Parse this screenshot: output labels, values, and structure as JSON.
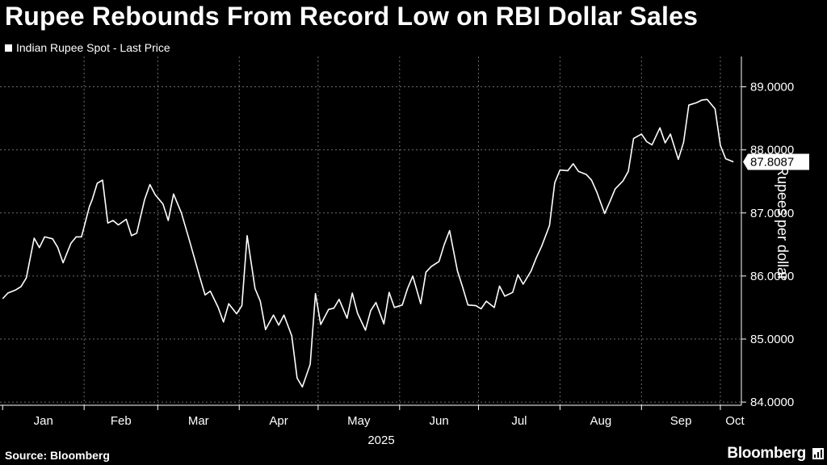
{
  "title": "Rupee Rebounds From Record Low on RBI Dollar Sales",
  "source": "Source: Bloomberg",
  "brand": "Bloomberg",
  "colors": {
    "background": "#000000",
    "line": "#ffffff",
    "grid": "#6b6b6b"
  },
  "chart_data": {
    "type": "line",
    "title": "Rupee Rebounds From Record Low on RBI Dollar Sales",
    "ylabel": "Rupees per dollar",
    "xlabel": "2025",
    "year_label": "2025",
    "legend": "Indian Rupee Spot - Last Price",
    "legend_position": "top-left",
    "y_axis_side": "right",
    "ylim": [
      83.95,
      89.25
    ],
    "yticks": [
      84.0,
      85.0,
      86.0,
      87.0,
      88.0,
      89.0
    ],
    "ytick_labels": [
      "84.0000",
      "85.0000",
      "86.0000",
      "87.0000",
      "88.0000",
      "89.0000"
    ],
    "x_months": [
      "Jan",
      "Feb",
      "Mar",
      "Apr",
      "May",
      "Jun",
      "Jul",
      "Aug",
      "Sep",
      "Oct"
    ],
    "last_value_label": "87.8087",
    "grid": true,
    "series": [
      {
        "name": "Indian Rupee Spot - Last Price",
        "x": [
          "2025-01-01",
          "2025-01-03",
          "2025-01-06",
          "2025-01-08",
          "2025-01-10",
          "2025-01-13",
          "2025-01-15",
          "2025-01-17",
          "2025-01-20",
          "2025-01-22",
          "2025-01-24",
          "2025-01-27",
          "2025-01-29",
          "2025-01-31",
          "2025-02-03",
          "2025-02-04",
          "2025-02-06",
          "2025-02-08",
          "2025-02-10",
          "2025-02-12",
          "2025-02-14",
          "2025-02-17",
          "2025-02-19",
          "2025-02-21",
          "2025-02-24",
          "2025-02-26",
          "2025-02-28",
          "2025-03-03",
          "2025-03-05",
          "2025-03-07",
          "2025-03-10",
          "2025-03-13",
          "2025-03-17",
          "2025-03-19",
          "2025-03-21",
          "2025-03-24",
          "2025-03-26",
          "2025-03-28",
          "2025-03-31",
          "2025-04-02",
          "2025-04-04",
          "2025-04-07",
          "2025-04-09",
          "2025-04-11",
          "2025-04-14",
          "2025-04-16",
          "2025-04-18",
          "2025-04-21",
          "2025-04-23",
          "2025-04-25",
          "2025-04-28",
          "2025-04-30",
          "2025-05-02",
          "2025-05-05",
          "2025-05-07",
          "2025-05-09",
          "2025-05-12",
          "2025-05-14",
          "2025-05-16",
          "2025-05-19",
          "2025-05-21",
          "2025-05-23",
          "2025-05-26",
          "2025-05-28",
          "2025-05-30",
          "2025-06-02",
          "2025-06-04",
          "2025-06-06",
          "2025-06-09",
          "2025-06-11",
          "2025-06-13",
          "2025-06-16",
          "2025-06-18",
          "2025-06-20",
          "2025-06-23",
          "2025-06-25",
          "2025-06-27",
          "2025-06-30",
          "2025-07-02",
          "2025-07-04",
          "2025-07-07",
          "2025-07-09",
          "2025-07-11",
          "2025-07-14",
          "2025-07-16",
          "2025-07-18",
          "2025-07-21",
          "2025-07-23",
          "2025-07-25",
          "2025-07-28",
          "2025-07-30",
          "2025-08-01",
          "2025-08-04",
          "2025-08-06",
          "2025-08-08",
          "2025-08-11",
          "2025-08-13",
          "2025-08-15",
          "2025-08-18",
          "2025-08-20",
          "2025-08-22",
          "2025-08-25",
          "2025-08-27",
          "2025-08-29",
          "2025-09-01",
          "2025-09-03",
          "2025-09-05",
          "2025-09-08",
          "2025-09-10",
          "2025-09-12",
          "2025-09-15",
          "2025-09-17",
          "2025-09-19",
          "2025-09-22",
          "2025-09-24",
          "2025-09-26",
          "2025-09-29",
          "2025-10-01",
          "2025-10-03",
          "2025-10-06"
        ],
        "values": [
          85.64,
          85.73,
          85.78,
          85.83,
          85.97,
          86.6,
          86.45,
          86.62,
          86.59,
          86.45,
          86.21,
          86.52,
          86.62,
          86.62,
          87.1,
          87.2,
          87.47,
          87.52,
          86.84,
          86.88,
          86.81,
          86.9,
          86.64,
          86.68,
          87.21,
          87.45,
          87.29,
          87.14,
          86.88,
          87.3,
          87.0,
          86.57,
          85.98,
          85.7,
          85.76,
          85.5,
          85.27,
          85.56,
          85.4,
          85.53,
          86.64,
          85.8,
          85.6,
          85.15,
          85.38,
          85.22,
          85.38,
          85.05,
          84.38,
          84.24,
          84.6,
          85.72,
          85.23,
          85.47,
          85.49,
          85.63,
          85.33,
          85.73,
          85.41,
          85.14,
          85.45,
          85.58,
          85.24,
          85.74,
          85.5,
          85.54,
          85.8,
          86.0,
          85.56,
          86.06,
          86.15,
          86.23,
          86.5,
          86.72,
          86.08,
          85.82,
          85.54,
          85.53,
          85.48,
          85.6,
          85.5,
          85.84,
          85.68,
          85.74,
          86.02,
          85.87,
          86.08,
          86.29,
          86.47,
          86.8,
          87.48,
          87.68,
          87.67,
          87.78,
          87.66,
          87.61,
          87.52,
          87.33,
          86.99,
          87.18,
          87.38,
          87.51,
          87.66,
          88.18,
          88.25,
          88.13,
          88.08,
          88.35,
          88.11,
          88.25,
          87.85,
          88.12,
          88.71,
          88.75,
          88.79,
          88.8,
          88.65,
          88.07,
          87.86,
          87.81
        ]
      }
    ]
  }
}
